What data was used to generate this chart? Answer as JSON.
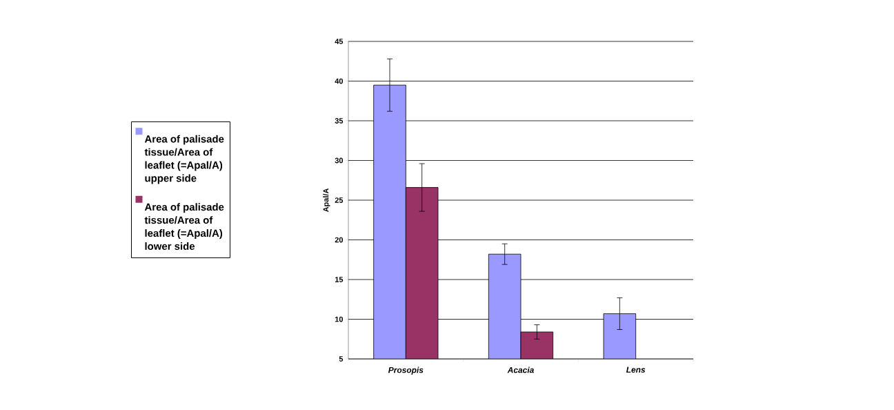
{
  "chart_data": {
    "type": "bar",
    "ylabel": "Apal/A",
    "categories": [
      "Prosopis",
      "Acacia",
      "Lens"
    ],
    "series": [
      {
        "name": "Area of palisade tissue/Area of leaflet (=Apal/A) upper side",
        "color": "#9999ff",
        "values": [
          39.5,
          18.2,
          10.7
        ],
        "errors": [
          3.3,
          1.3,
          2
        ]
      },
      {
        "name": "Area of palisade tissue/Area of leaflet (=Apal/A) lower side",
        "color": "#993366",
        "values": [
          26.6,
          8.4,
          null
        ],
        "errors": [
          3,
          0.9,
          null
        ]
      }
    ],
    "ylim": [
      5,
      45
    ],
    "yticks": [
      5,
      10,
      15,
      20,
      25,
      30,
      35,
      40,
      45
    ],
    "grid": "y",
    "legend": "left"
  }
}
